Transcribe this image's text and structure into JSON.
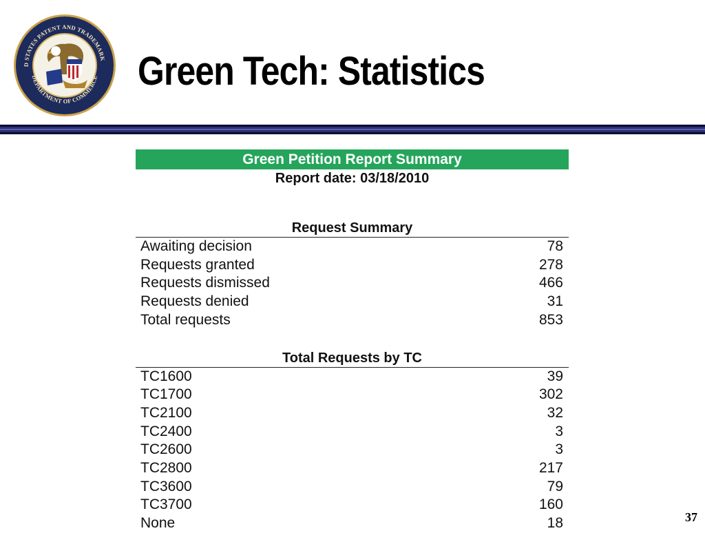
{
  "slide": {
    "title": "Green Tech: Statistics",
    "page_number": "37",
    "logo": {
      "icon": "uspto-seal-icon",
      "text_top": "UNITED STATES PATENT AND TRADEMARK OFFICE",
      "text_bottom": "DEPARTMENT OF COMMERCE"
    },
    "colors": {
      "header_green": "#25a55b",
      "rule_navy": "#2a2f72"
    }
  },
  "report": {
    "header": "Green Petition Report Summary",
    "date": "Report date: 03/18/2010",
    "request_summary": {
      "title": "Request Summary",
      "rows": [
        {
          "label": "Awaiting decision",
          "value": "78"
        },
        {
          "label": "Requests granted",
          "value": "278"
        },
        {
          "label": "Requests dismissed",
          "value": "466"
        },
        {
          "label": "Requests denied",
          "value": "31"
        },
        {
          "label": "Total requests",
          "value": "853"
        }
      ]
    },
    "by_tc": {
      "title": "Total Requests by TC",
      "rows": [
        {
          "label": "TC1600",
          "value": "39"
        },
        {
          "label": "TC1700",
          "value": "302"
        },
        {
          "label": "TC2100",
          "value": "32"
        },
        {
          "label": "TC2400",
          "value": "3"
        },
        {
          "label": "TC2600",
          "value": "3"
        },
        {
          "label": "TC2800",
          "value": "217"
        },
        {
          "label": "TC3600",
          "value": "79"
        },
        {
          "label": "TC3700",
          "value": "160"
        },
        {
          "label": "None",
          "value": "18"
        }
      ]
    }
  }
}
